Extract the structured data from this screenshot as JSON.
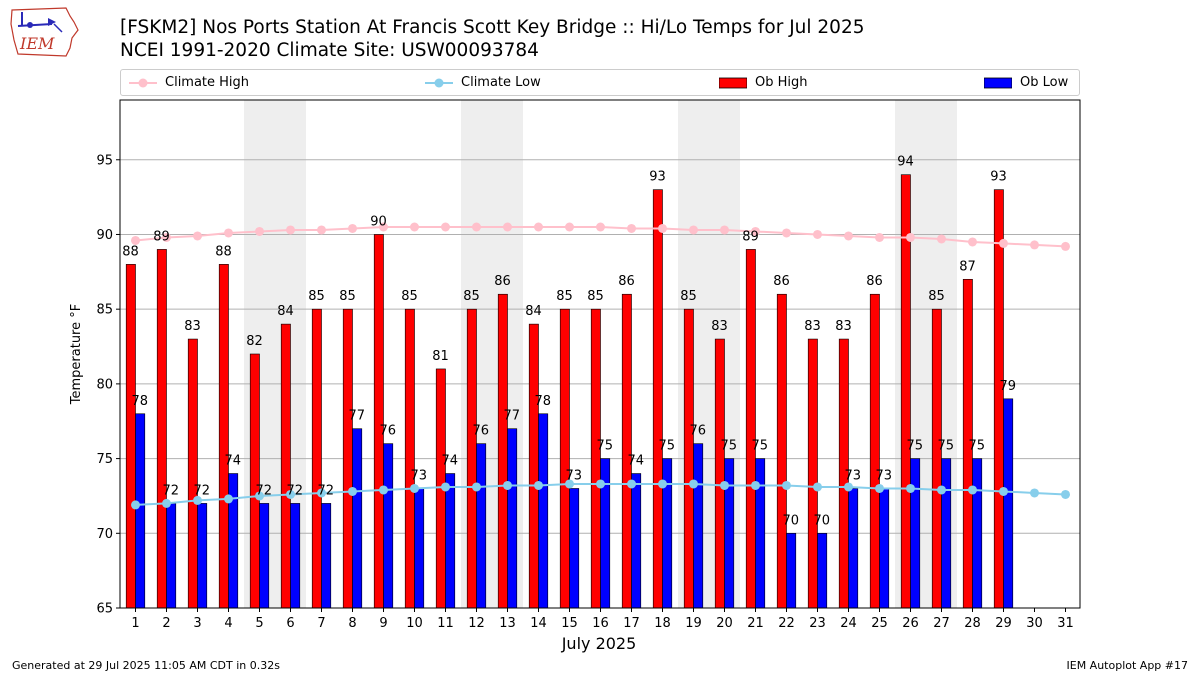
{
  "header": {
    "logo_text": "IEM",
    "title": "[FSKM2] Nos Ports Station At Francis Scott Key Bridge :: Hi/Lo Temps for Jul 2025",
    "subtitle": "NCEI 1991-2020 Climate Site: USW00093784"
  },
  "legend": {
    "position": "top, spanning plot width",
    "items": [
      {
        "label": "Climate High",
        "color": "#ffc0cb",
        "kind": "line-marker"
      },
      {
        "label": "Climate Low",
        "color": "#87ceeb",
        "kind": "line-marker"
      },
      {
        "label": "Ob High",
        "color": "#ff0000",
        "kind": "bar"
      },
      {
        "label": "Ob Low",
        "color": "#0000ff",
        "kind": "bar"
      }
    ]
  },
  "footer": {
    "left": "Generated at 29 Jul 2025 11:05 AM CDT in 0.32s",
    "right": "IEM Autoplot App #17"
  },
  "chart_data": {
    "type": "bar",
    "xlabel": "July 2025",
    "ylabel": "Temperature °F",
    "ylim": [
      65,
      99
    ],
    "yticks": [
      65,
      70,
      75,
      80,
      85,
      90,
      95
    ],
    "grid": "horizontal",
    "weekend_shading_days": [
      5,
      6,
      12,
      13,
      19,
      20,
      26,
      27
    ],
    "categories": [
      "1",
      "2",
      "3",
      "4",
      "5",
      "6",
      "7",
      "8",
      "9",
      "10",
      "11",
      "12",
      "13",
      "14",
      "15",
      "16",
      "17",
      "18",
      "19",
      "20",
      "21",
      "22",
      "23",
      "24",
      "25",
      "26",
      "27",
      "28",
      "29",
      "30",
      "31"
    ],
    "series": [
      {
        "name": "Ob High",
        "type": "bar",
        "color": "#ff0000",
        "values": [
          88,
          89,
          83,
          88,
          82,
          84,
          85,
          85,
          90,
          85,
          81,
          85,
          86,
          84,
          85,
          85,
          86,
          93,
          85,
          83,
          89,
          86,
          83,
          83,
          86,
          94,
          85,
          87,
          93,
          null,
          null
        ]
      },
      {
        "name": "Ob Low",
        "type": "bar",
        "color": "#0000ff",
        "values": [
          78,
          72,
          72,
          74,
          72,
          72,
          72,
          77,
          76,
          73,
          74,
          76,
          77,
          78,
          73,
          75,
          74,
          75,
          76,
          75,
          75,
          70,
          70,
          73,
          73,
          75,
          75,
          75,
          79,
          null,
          null
        ]
      },
      {
        "name": "Climate High",
        "type": "line",
        "color": "#ffc0cb",
        "values": [
          89.6,
          89.8,
          89.9,
          90.1,
          90.2,
          90.3,
          90.3,
          90.4,
          90.5,
          90.5,
          90.5,
          90.5,
          90.5,
          90.5,
          90.5,
          90.5,
          90.4,
          90.4,
          90.3,
          90.3,
          90.2,
          90.1,
          90.0,
          89.9,
          89.8,
          89.8,
          89.7,
          89.5,
          89.4,
          89.3,
          89.2
        ]
      },
      {
        "name": "Climate Low",
        "type": "line",
        "color": "#87ceeb",
        "values": [
          71.9,
          72.0,
          72.2,
          72.3,
          72.5,
          72.6,
          72.7,
          72.8,
          72.9,
          73.0,
          73.1,
          73.1,
          73.2,
          73.2,
          73.3,
          73.3,
          73.3,
          73.3,
          73.3,
          73.2,
          73.2,
          73.2,
          73.1,
          73.1,
          73.0,
          73.0,
          72.9,
          72.9,
          72.8,
          72.7,
          72.6
        ]
      }
    ]
  }
}
